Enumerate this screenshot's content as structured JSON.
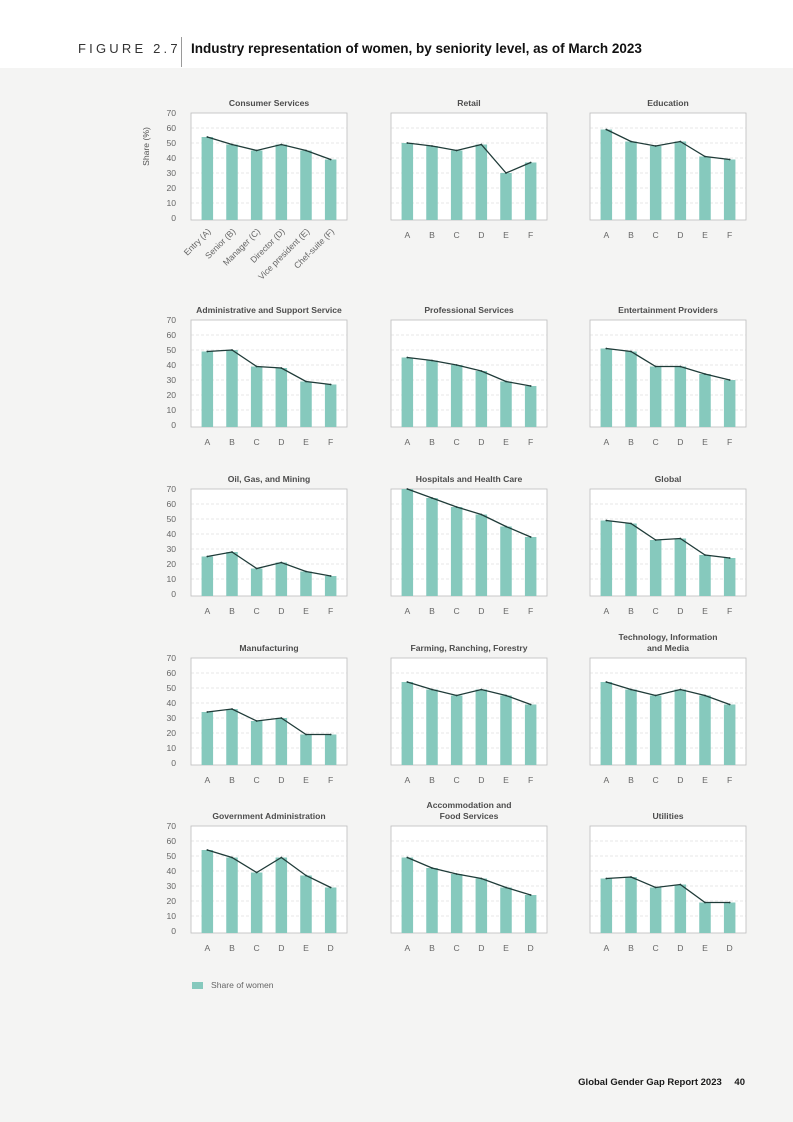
{
  "header": {
    "figure_label": "FIGURE 2.7",
    "title": "Industry representation of women, by seniority level, as of March 2023"
  },
  "footer": {
    "report": "Global Gender Gap Report 2023",
    "page": "40"
  },
  "colors": {
    "bar": "#86c9bd",
    "line": "#1f3b38",
    "frame": "#bdbdbd",
    "grid": "#d0d0d0"
  },
  "legend": {
    "label": "Share of women"
  },
  "chart_data": [
    {
      "type": "bar",
      "title": "Consumer Services",
      "ylabel": "Share (%)",
      "ylim": [
        0,
        70
      ],
      "yticks": [
        0,
        10,
        20,
        30,
        40,
        50,
        60,
        70
      ],
      "categories": [
        "Entry (A)",
        "Senior (B)",
        "Manager (C)",
        "Director (D)",
        "Vice president (E)",
        "Chef-suite (F)"
      ],
      "values": [
        54,
        49,
        45,
        49,
        45,
        39
      ],
      "line_overlay": true
    },
    {
      "type": "bar",
      "title": "Retail",
      "ylim": [
        0,
        70
      ],
      "categories": [
        "A",
        "B",
        "C",
        "D",
        "E",
        "F"
      ],
      "values": [
        50,
        48,
        45,
        49,
        30,
        37
      ],
      "line_overlay": true
    },
    {
      "type": "bar",
      "title": "Education",
      "ylim": [
        0,
        70
      ],
      "categories": [
        "A",
        "B",
        "C",
        "D",
        "E",
        "F"
      ],
      "values": [
        59,
        51,
        48,
        51,
        41,
        39
      ],
      "line_overlay": true
    },
    {
      "type": "bar",
      "title": "Administrative and Support Service",
      "ylim": [
        0,
        70
      ],
      "yticks": [
        0,
        10,
        20,
        30,
        40,
        50,
        60,
        70
      ],
      "categories": [
        "A",
        "B",
        "C",
        "D",
        "E",
        "F"
      ],
      "values": [
        49,
        50,
        39,
        38,
        29,
        27
      ],
      "line_overlay": true
    },
    {
      "type": "bar",
      "title": "Professional Services",
      "ylim": [
        0,
        70
      ],
      "categories": [
        "A",
        "B",
        "C",
        "D",
        "E",
        "F"
      ],
      "values": [
        45,
        43,
        40,
        36,
        29,
        26
      ],
      "line_overlay": true
    },
    {
      "type": "bar",
      "title": "Entertainment Providers",
      "ylim": [
        0,
        70
      ],
      "categories": [
        "A",
        "B",
        "C",
        "D",
        "E",
        "F"
      ],
      "values": [
        51,
        49,
        39,
        39,
        34,
        30
      ],
      "line_overlay": true
    },
    {
      "type": "bar",
      "title": "Oil, Gas, and Mining",
      "ylim": [
        0,
        70
      ],
      "yticks": [
        0,
        10,
        20,
        30,
        40,
        50,
        60,
        70
      ],
      "categories": [
        "A",
        "B",
        "C",
        "D",
        "E",
        "F"
      ],
      "values": [
        25,
        28,
        17,
        21,
        15,
        12
      ],
      "line_overlay": true
    },
    {
      "type": "bar",
      "title": "Hospitals and Health Care",
      "ylim": [
        0,
        70
      ],
      "categories": [
        "A",
        "B",
        "C",
        "D",
        "E",
        "F"
      ],
      "values": [
        70,
        64,
        58,
        53,
        45,
        38
      ],
      "line_overlay": true
    },
    {
      "type": "bar",
      "title": "Global",
      "ylim": [
        0,
        70
      ],
      "categories": [
        "A",
        "B",
        "C",
        "D",
        "E",
        "F"
      ],
      "values": [
        49,
        47,
        36,
        37,
        26,
        24
      ],
      "line_overlay": true
    },
    {
      "type": "bar",
      "title": "Manufacturing",
      "ylim": [
        0,
        70
      ],
      "yticks": [
        0,
        10,
        20,
        30,
        40,
        50,
        60,
        70
      ],
      "categories": [
        "A",
        "B",
        "C",
        "D",
        "E",
        "F"
      ],
      "values": [
        34,
        36,
        28,
        30,
        19,
        19
      ],
      "line_overlay": true
    },
    {
      "type": "bar",
      "title": "Farming, Ranching, Forestry",
      "ylim": [
        0,
        70
      ],
      "categories": [
        "A",
        "B",
        "C",
        "D",
        "E",
        "F"
      ],
      "values": [
        54,
        49,
        45,
        49,
        45,
        39
      ],
      "line_overlay": true
    },
    {
      "type": "bar",
      "title": "Technology, Information\nand Media",
      "ylim": [
        0,
        70
      ],
      "categories": [
        "A",
        "B",
        "C",
        "D",
        "E",
        "F"
      ],
      "values": [
        54,
        49,
        45,
        49,
        45,
        39
      ],
      "line_overlay": true
    },
    {
      "type": "bar",
      "title": "Government Administration",
      "ylim": [
        0,
        70
      ],
      "yticks": [
        0,
        10,
        20,
        30,
        40,
        50,
        60,
        70
      ],
      "categories": [
        "A",
        "B",
        "C",
        "D",
        "E",
        "D"
      ],
      "values": [
        54,
        49,
        39,
        49,
        37,
        29
      ],
      "line_overlay": true
    },
    {
      "type": "bar",
      "title": "Accommodation and\nFood Services",
      "ylim": [
        0,
        70
      ],
      "categories": [
        "A",
        "B",
        "C",
        "D",
        "E",
        "D"
      ],
      "values": [
        49,
        42,
        38,
        35,
        29,
        24
      ],
      "line_overlay": true
    },
    {
      "type": "bar",
      "title": "Utilities",
      "ylim": [
        0,
        70
      ],
      "categories": [
        "A",
        "B",
        "C",
        "D",
        "E",
        "D"
      ],
      "values": [
        35,
        36,
        29,
        31,
        19,
        19
      ],
      "line_overlay": true
    }
  ]
}
